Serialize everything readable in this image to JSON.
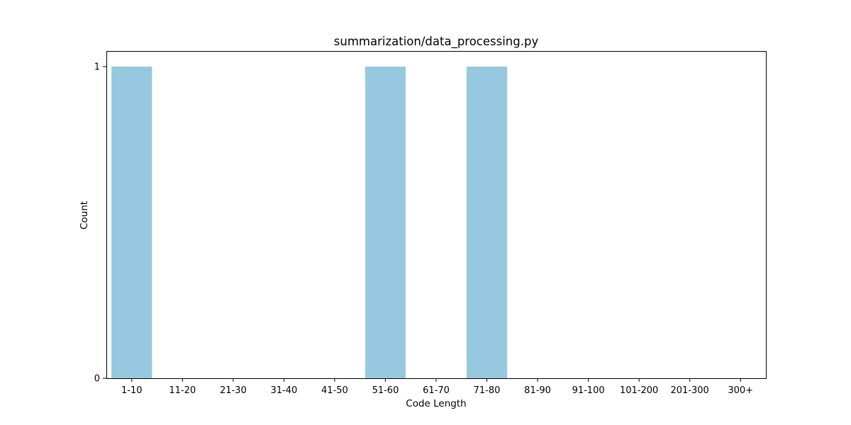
{
  "chart_data": {
    "type": "bar",
    "title": "summarization/data_processing.py",
    "xlabel": "Code Length",
    "ylabel": "Count",
    "categories": [
      "1-10",
      "11-20",
      "21-30",
      "31-40",
      "41-50",
      "51-60",
      "61-70",
      "71-80",
      "81-90",
      "91-100",
      "101-200",
      "201-300",
      "300+"
    ],
    "values": [
      1,
      0,
      0,
      0,
      0,
      1,
      0,
      1,
      0,
      0,
      0,
      0,
      0
    ],
    "yticks": [
      "0",
      "1"
    ],
    "ylim": [
      0,
      1.05
    ],
    "grid": false,
    "legend": "none",
    "bar_color": "#96c9df"
  }
}
